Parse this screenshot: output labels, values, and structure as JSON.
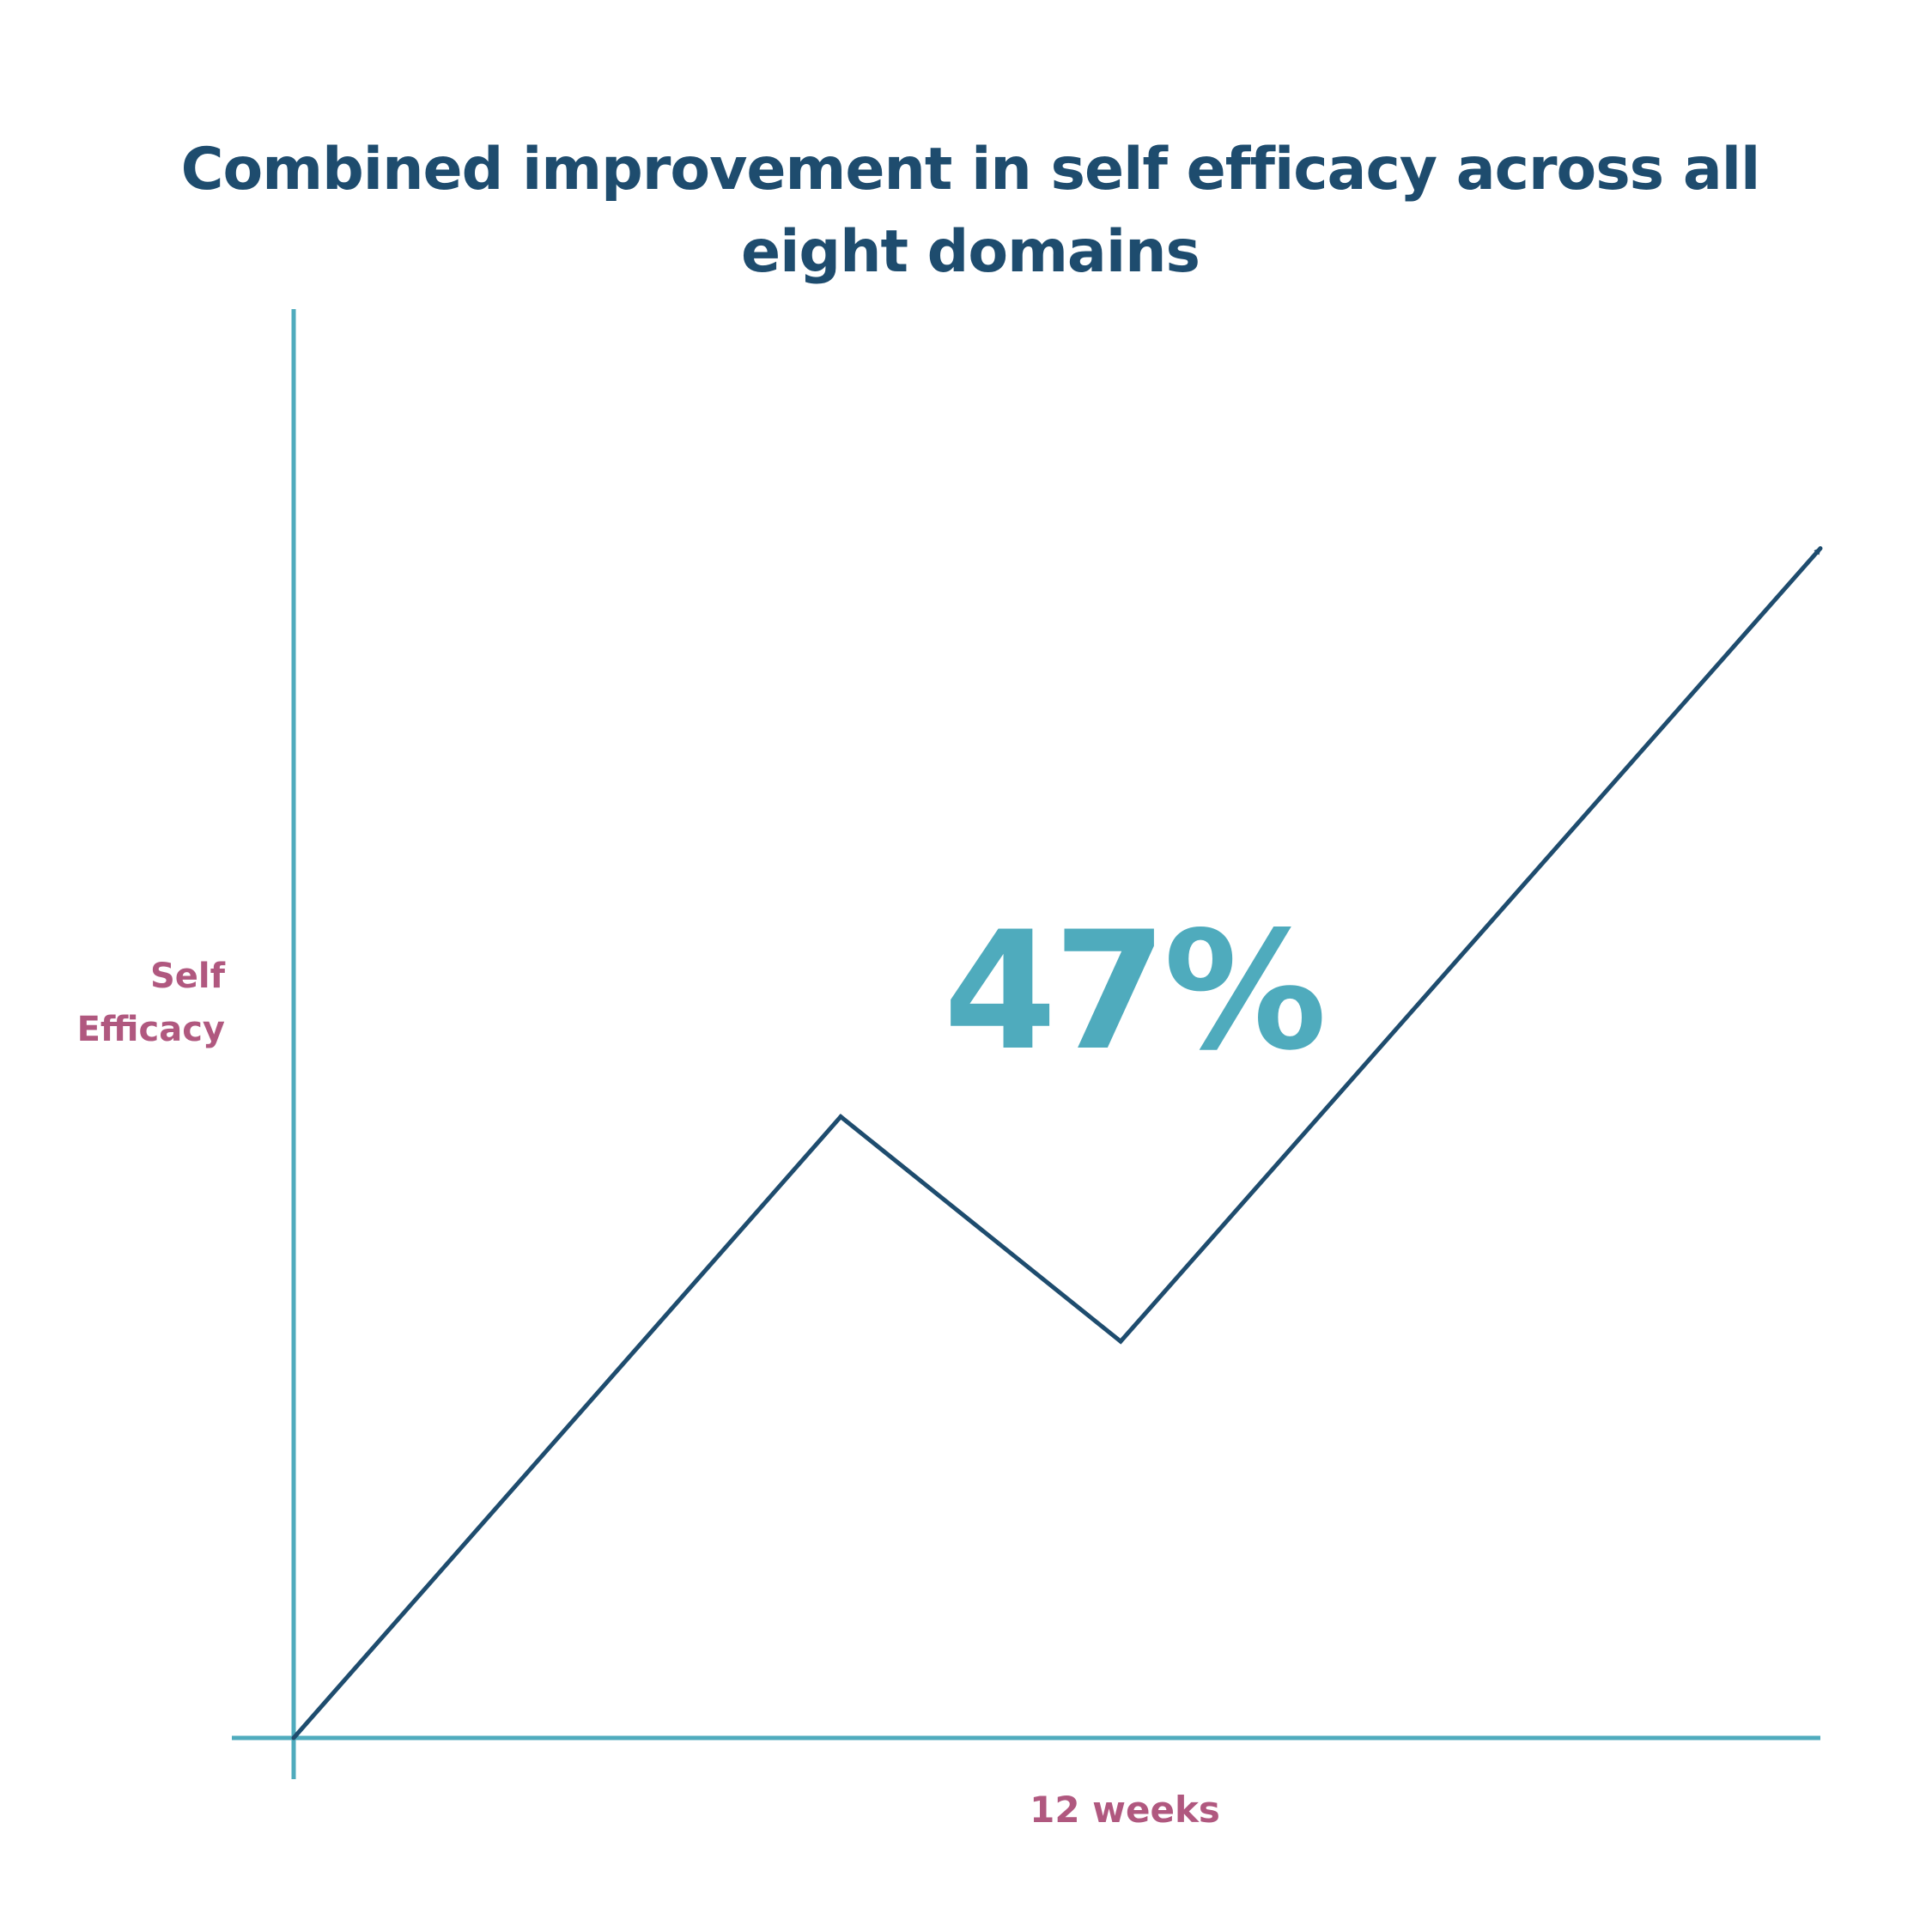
{
  "chart_data": {
    "type": "line",
    "title": "Combined improvement in self efficacy across all eight domains",
    "xlabel": "12 weeks",
    "ylabel_lines": [
      "Self",
      "Efficacy"
    ],
    "annotation": "47%",
    "x": [
      0,
      4.3,
      6.5,
      12
    ],
    "y": [
      0,
      47,
      30,
      90
    ],
    "xlim": [
      0,
      12
    ],
    "ylim": [
      0,
      112
    ],
    "grid": false,
    "legend": "none",
    "arrow_at_end": true
  },
  "colors": {
    "title": "#1e4c6e",
    "axis": "#4fabbd",
    "line": "#1e4c6e",
    "label": "#b0587f",
    "annotation": "#4fabbd",
    "background": "#ffffff"
  }
}
